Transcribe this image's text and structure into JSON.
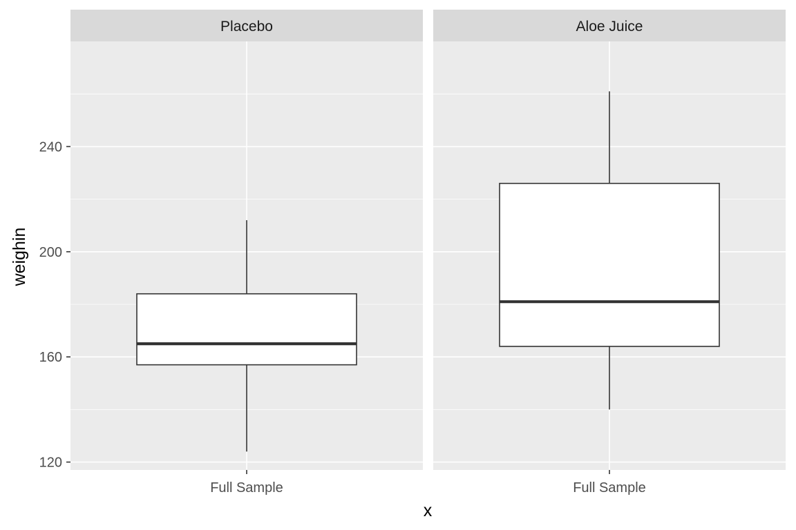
{
  "chart_data": {
    "type": "boxplot",
    "xlabel": "x",
    "ylabel": "weighin",
    "ylim": [
      117,
      280
    ],
    "yticks": [
      120,
      160,
      200,
      240
    ],
    "yticks_minor": [
      140,
      180,
      220,
      260
    ],
    "category": "Full Sample",
    "grid": true,
    "panels": [
      {
        "strip_label": "Placebo",
        "category": "Full Sample",
        "box": {
          "lower_whisker": 124,
          "q1": 157,
          "median": 165,
          "q3": 184,
          "upper_whisker": 212
        }
      },
      {
        "strip_label": "Aloe Juice",
        "category": "Full Sample",
        "box": {
          "lower_whisker": 140,
          "q1": 164,
          "median": 181,
          "q3": 226,
          "upper_whisker": 261
        }
      }
    ]
  },
  "colors": {
    "panel_background": "#ebebeb",
    "strip_background": "#d9d9d9",
    "grid": "#ffffff",
    "box_fill": "#ffffff",
    "box_line": "#333333",
    "tick_text": "#4d4d4d"
  }
}
